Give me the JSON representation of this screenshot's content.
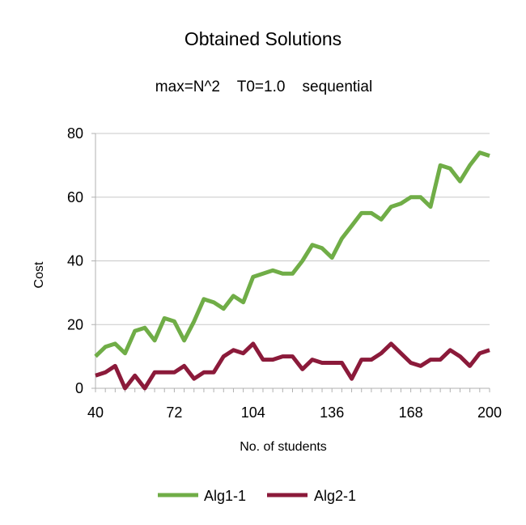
{
  "chart_data": {
    "type": "line",
    "title": "Obtained Solutions",
    "subtitle": "max=N^2    T0=1.0    sequential",
    "xlabel": "No. of students",
    "ylabel": "Cost",
    "xlim": [
      40,
      200
    ],
    "ylim": [
      0,
      80
    ],
    "x_ticks": [
      40,
      72,
      104,
      136,
      168,
      200
    ],
    "y_ticks": [
      0,
      20,
      40,
      60,
      80
    ],
    "grid": "horizontal",
    "legend_position": "bottom",
    "x": [
      40,
      44,
      48,
      52,
      56,
      60,
      64,
      68,
      72,
      76,
      80,
      84,
      88,
      92,
      96,
      100,
      104,
      108,
      112,
      116,
      120,
      124,
      128,
      132,
      136,
      140,
      144,
      148,
      152,
      156,
      160,
      164,
      168,
      172,
      176,
      180,
      184,
      188,
      192,
      196,
      200
    ],
    "series": [
      {
        "name": "Alg1-1",
        "color": "#70AD47",
        "values": [
          10,
          13,
          14,
          11,
          18,
          19,
          15,
          22,
          21,
          15,
          21,
          28,
          27,
          25,
          29,
          27,
          35,
          36,
          37,
          36,
          36,
          40,
          45,
          44,
          41,
          47,
          51,
          55,
          55,
          53,
          57,
          58,
          60,
          60,
          57,
          70,
          69,
          65,
          70,
          74,
          73
        ]
      },
      {
        "name": "Alg2-1",
        "color": "#8B1A3A",
        "values": [
          4,
          5,
          7,
          0,
          4,
          0,
          5,
          5,
          5,
          7,
          3,
          5,
          5,
          10,
          12,
          11,
          14,
          9,
          9,
          10,
          10,
          6,
          9,
          8,
          8,
          8,
          3,
          9,
          9,
          11,
          14,
          11,
          8,
          7,
          9,
          9,
          12,
          10,
          7,
          11,
          12
        ]
      }
    ]
  }
}
